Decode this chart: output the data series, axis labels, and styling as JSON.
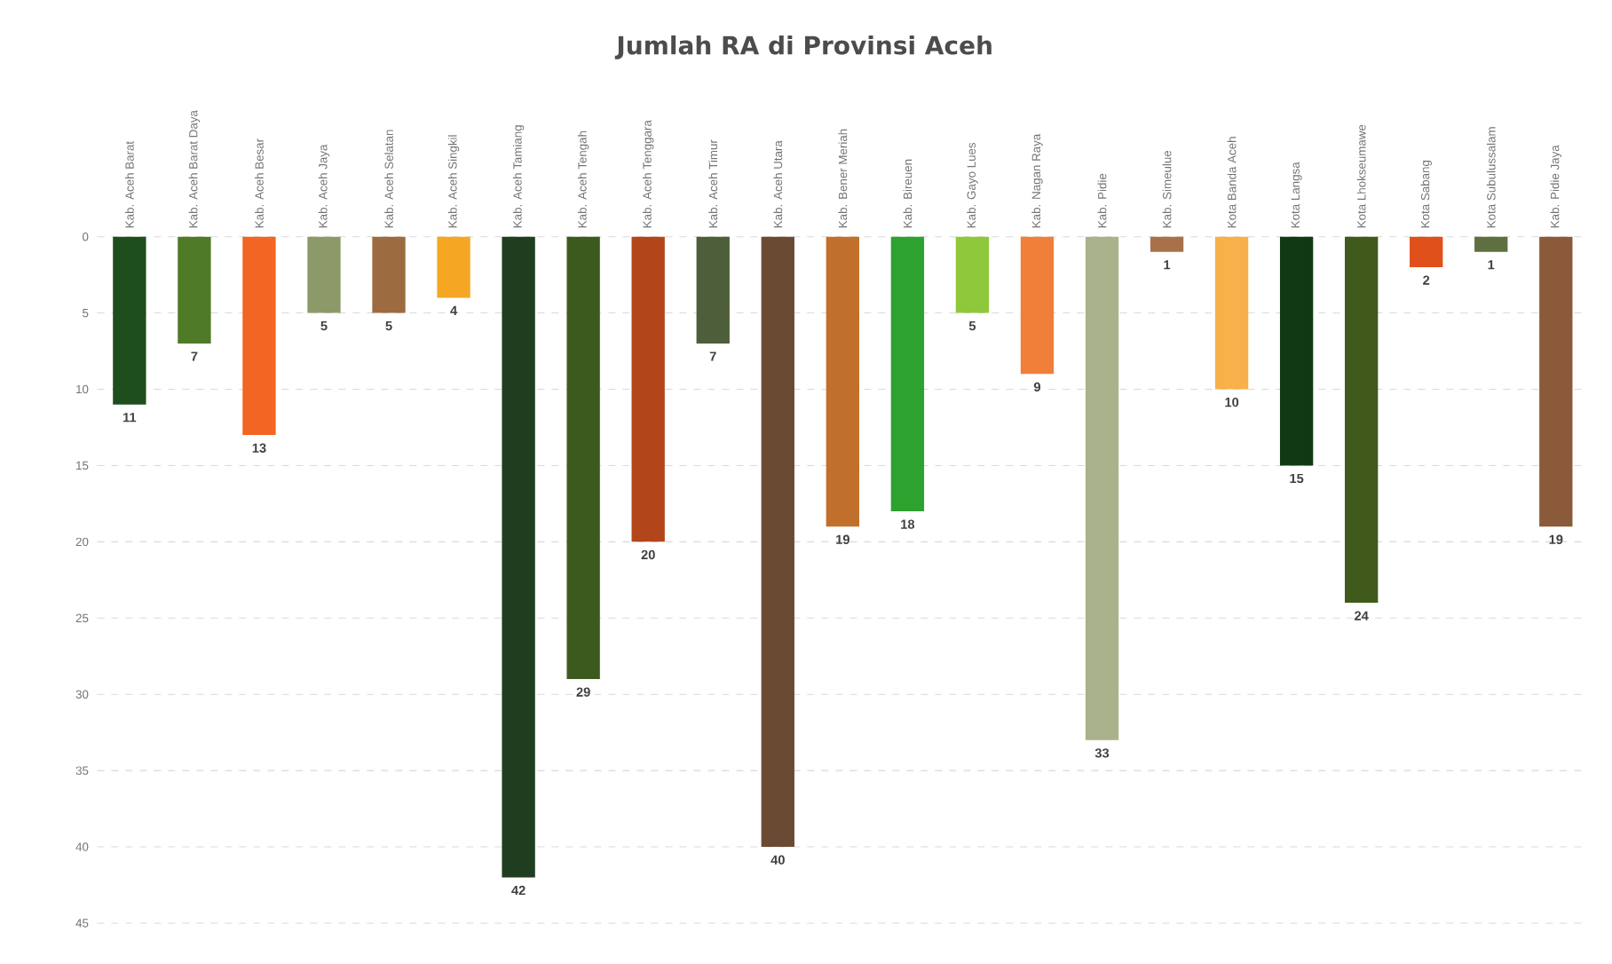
{
  "chart_data": {
    "type": "bar",
    "title": "Jumlah RA di Provinsi Aceh",
    "categories": [
      "Kab. Aceh Barat",
      "Kab. Aceh Barat Daya",
      "Kab. Aceh Besar",
      "Kab. Aceh Jaya",
      "Kab. Aceh Selatan",
      "Kab. Aceh Singkil",
      "Kab. Aceh Tamiang",
      "Kab. Aceh Tengah",
      "Kab. Aceh Tenggara",
      "Kab. Aceh Timur",
      "Kab. Aceh Utara",
      "Kab. Bener Meriah",
      "Kab. Bireuen",
      "Kab. Gayo Lues",
      "Kab. Nagan Raya",
      "Kab. Pidie",
      "Kab. Simeulue",
      "Kota Banda Aceh",
      "Kota Langsa",
      "Kota Lhokseumawe",
      "Kota Sabang",
      "Kota Subulussalam",
      "Kab. Pidie Jaya"
    ],
    "values": [
      11,
      7,
      13,
      5,
      5,
      4,
      42,
      29,
      20,
      7,
      40,
      19,
      18,
      5,
      9,
      33,
      1,
      10,
      15,
      24,
      2,
      1,
      19
    ],
    "colors": [
      "#1e4d1e",
      "#4f7a28",
      "#f26522",
      "#8c9a6a",
      "#9c6b3f",
      "#f5a623",
      "#1f3d1f",
      "#3d5a1e",
      "#b2461a",
      "#4f5e3a",
      "#6b4a33",
      "#c0702a",
      "#2ea22e",
      "#8fc83a",
      "#f07f3a",
      "#a9b28a",
      "#a8714a",
      "#f7b04a",
      "#0f3a12",
      "#3f5a1a",
      "#e0501a",
      "#5f7040",
      "#8a5a3a"
    ],
    "ylim": [
      45,
      0
    ],
    "yticks": [
      0,
      5,
      10,
      15,
      20,
      25,
      30,
      35,
      40,
      45
    ],
    "grid": "y",
    "data_labels": true
  }
}
